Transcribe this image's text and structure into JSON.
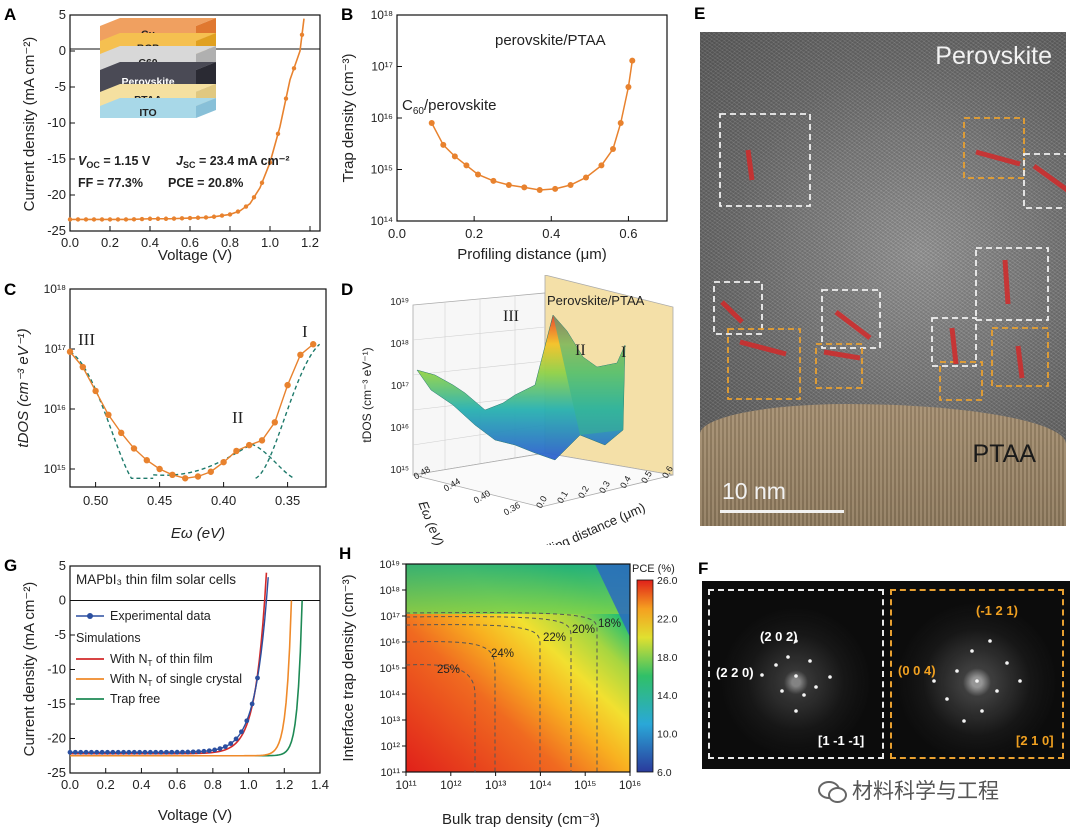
{
  "colors": {
    "orange": "#e8822e",
    "teal": "#1e7a6b",
    "red": "#d32a2a",
    "blue": "#2b4fa0",
    "dashWhite": "#f0f0f0",
    "dashOrange": "#e8a030"
  },
  "panels": {
    "A": {
      "label": "A",
      "xlabel": "Voltage (V)",
      "ylabel": "Current density (mA cm⁻²)",
      "xticks": [
        "0.0",
        "0.2",
        "0.4",
        "0.6",
        "0.8",
        "1.0",
        "1.2"
      ],
      "yticks": [
        "5",
        "0",
        "-5",
        "-10",
        "-15",
        "-20",
        "-25"
      ],
      "stack": [
        "Cu",
        "BCP",
        "C60",
        "Perovskite",
        "PTAA",
        "ITO"
      ],
      "stats": {
        "voc": "V",
        "voc_sub": "OC",
        "voc_val": " = 1.15 V",
        "jsc": "J",
        "jsc_sub": "SC",
        "jsc_val": " = 23.4 mA cm⁻²",
        "ff": "FF = 77.3%",
        "pce": "PCE = 20.8%"
      }
    },
    "B": {
      "label": "B",
      "xlabel": "Profiling distance (μm)",
      "ylabel": "Trap density (cm⁻³)",
      "xticks": [
        "0.0",
        "0.2",
        "0.4",
        "0.6"
      ],
      "yticks": [
        "10¹⁸",
        "10¹⁷",
        "10¹⁶",
        "10¹⁵",
        "10¹⁴"
      ],
      "ann1": "perovskite/PTAA",
      "ann2_a": "C",
      "ann2_sub": "60",
      "ann2_b": "/perovskite"
    },
    "C": {
      "label": "C",
      "xlabel": "Eω (eV)",
      "ylabel": "tDOS (cm⁻³ eV⁻¹)",
      "xticks": [
        "0.50",
        "0.45",
        "0.40",
        "0.35"
      ],
      "yticks": [
        "10¹⁸",
        "10¹⁷",
        "10¹⁶",
        "10¹⁵"
      ],
      "ann": [
        "III",
        "II",
        "I"
      ]
    },
    "D": {
      "label": "D",
      "title": "Perovskite/PTAA",
      "zlabel": "tDOS (cm⁻³ eV⁻¹)",
      "xlabel": "Profiling distance (μm)",
      "ylabel": "Eω (eV)",
      "zticks": [
        "10¹⁹",
        "10¹⁸",
        "10¹⁷",
        "10¹⁶",
        "10¹⁵"
      ],
      "xticks": [
        "0.0",
        "0.1",
        "0.2",
        "0.3",
        "0.4",
        "0.5",
        "0.6"
      ],
      "yticks": [
        "0.48",
        "0.44",
        "0.40",
        "0.36"
      ],
      "ann": [
        "III",
        "II",
        "I"
      ]
    },
    "E": {
      "label": "E",
      "top": "Perovskite",
      "bottom": "PTAA",
      "scale": "10 nm"
    },
    "F": {
      "label": "F",
      "left": {
        "spots": [
          "(2 0 2)",
          "(2 2 0)"
        ],
        "zone": "[1 -1 -1]"
      },
      "right": {
        "spots": [
          "(-1 2 1)",
          "(0 0 4)"
        ],
        "zone": "[2 1 0]"
      }
    },
    "G": {
      "label": "G",
      "title": "MAPbI₃ thin film solar cells",
      "xlabel": "Voltage (V)",
      "ylabel": "Current density (mA cm⁻²)",
      "xticks": [
        "0.0",
        "0.2",
        "0.4",
        "0.6",
        "0.8",
        "1.0",
        "1.2",
        "1.4"
      ],
      "yticks": [
        "5",
        "0",
        "-5",
        "-10",
        "-15",
        "-20",
        "-25"
      ],
      "legend": {
        "exp": "Experimental data",
        "sims": "Simulations",
        "thin": "With N",
        "thin_b": " of thin film",
        "single": "With N",
        "single_b": " of single crystal",
        "free": "Trap free",
        "sub": "T"
      }
    },
    "H": {
      "label": "H",
      "xlabel": "Bulk trap density (cm⁻³)",
      "ylabel": "Interface trap density (cm⁻³)",
      "cbar_title": "PCE (%)",
      "cbar_ticks": [
        "26.0",
        "22.0",
        "18.0",
        "14.0",
        "10.0",
        "6.0"
      ],
      "xticks": [
        "10¹¹",
        "10¹²",
        "10¹³",
        "10¹⁴",
        "10¹⁵",
        "10¹⁶"
      ],
      "yticks": [
        "10¹⁹",
        "10¹⁸",
        "10¹⁷",
        "10¹⁶",
        "10¹⁵",
        "10¹⁴",
        "10¹³",
        "10¹²",
        "10¹¹"
      ],
      "contours": [
        "25%",
        "24%",
        "22%",
        "20%",
        "18%"
      ]
    }
  },
  "watermark": "材料科学与工程",
  "chart_data": [
    {
      "type": "line",
      "panel": "A",
      "xlabel": "Voltage (V)",
      "ylabel": "Current density (mA cm⁻²)",
      "xlim": [
        0,
        1.2
      ],
      "ylim": [
        -25,
        5
      ],
      "x": [
        0.0,
        0.1,
        0.2,
        0.3,
        0.4,
        0.5,
        0.6,
        0.7,
        0.8,
        0.85,
        0.9,
        0.95,
        1.0,
        1.05,
        1.1,
        1.15,
        1.17
      ],
      "y": [
        -23.4,
        -23.4,
        -23.4,
        -23.4,
        -23.3,
        -23.3,
        -23.2,
        -23.1,
        -22.7,
        -22.2,
        -21.2,
        -19.0,
        -15.5,
        -10.5,
        -4.0,
        0.0,
        4.5
      ]
    },
    {
      "type": "scatter",
      "panel": "B",
      "xlabel": "Profiling distance (μm)",
      "ylabel": "Trap density (cm⁻³)",
      "xlim": [
        0,
        0.7
      ],
      "ylim": [
        100000000000000.0,
        1e+18
      ],
      "log_y": true,
      "x": [
        0.09,
        0.12,
        0.15,
        0.18,
        0.21,
        0.25,
        0.29,
        0.33,
        0.37,
        0.41,
        0.45,
        0.49,
        0.53,
        0.56,
        0.58,
        0.6,
        0.61
      ],
      "y": [
        8000000000000000.0,
        3000000000000000.0,
        1800000000000000.0,
        1200000000000000.0,
        800000000000000.0,
        600000000000000.0,
        500000000000000.0,
        450000000000000.0,
        400000000000000.0,
        420000000000000.0,
        500000000000000.0,
        700000000000000.0,
        1200000000000000.0,
        2500000000000000.0,
        8000000000000000.0,
        4e+16,
        1.3e+17
      ]
    },
    {
      "type": "scatter",
      "panel": "C",
      "xlabel": "Eω (eV)",
      "ylabel": "tDOS (cm⁻³ eV⁻¹)",
      "xlim": [
        0.52,
        0.32
      ],
      "ylim": [
        500000000000000.0,
        1e+18
      ],
      "log_y": true,
      "x": [
        0.52,
        0.51,
        0.5,
        0.49,
        0.48,
        0.47,
        0.46,
        0.45,
        0.44,
        0.43,
        0.42,
        0.41,
        0.4,
        0.39,
        0.38,
        0.37,
        0.36,
        0.35,
        0.34,
        0.33
      ],
      "y": [
        9e+16,
        5e+16,
        2e+16,
        8000000000000000.0,
        4000000000000000.0,
        2200000000000000.0,
        1400000000000000.0,
        1000000000000000.0,
        800000000000000.0,
        700000000000000.0,
        750000000000000.0,
        900000000000000.0,
        1300000000000000.0,
        2000000000000000.0,
        2500000000000000.0,
        3000000000000000.0,
        6000000000000000.0,
        2.5e+16,
        8e+16,
        1.2e+17
      ]
    }
  ]
}
